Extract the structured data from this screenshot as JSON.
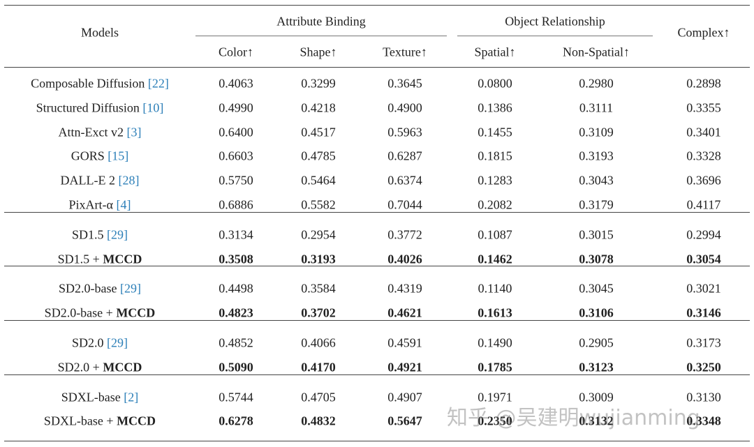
{
  "header": {
    "models": "Models",
    "complex": "Complex↑",
    "groups": [
      {
        "label": "Attribute Binding",
        "columns": [
          "Color↑",
          "Shape↑",
          "Texture↑"
        ]
      },
      {
        "label": "Object Relationship",
        "columns": [
          "Spatial↑",
          "Non-Spatial↑"
        ]
      }
    ]
  },
  "sections": [
    {
      "rows": [
        {
          "model": "Composable Diffusion",
          "ref": "[22]",
          "values": [
            "0.4063",
            "0.3299",
            "0.3645",
            "0.0800",
            "0.2980",
            "0.2898"
          ]
        },
        {
          "model": "Structured Diffusion",
          "ref": "[10]",
          "values": [
            "0.4990",
            "0.4218",
            "0.4900",
            "0.1386",
            "0.3111",
            "0.3355"
          ]
        },
        {
          "model": "Attn-Exct v2",
          "ref": "[3]",
          "values": [
            "0.6400",
            "0.4517",
            "0.5963",
            "0.1455",
            "0.3109",
            "0.3401"
          ]
        },
        {
          "model": "GORS",
          "ref": "[15]",
          "values": [
            "0.6603",
            "0.4785",
            "0.6287",
            "0.1815",
            "0.3193",
            "0.3328"
          ]
        },
        {
          "model": "DALL-E 2",
          "ref": "[28]",
          "values": [
            "0.5750",
            "0.5464",
            "0.6374",
            "0.1283",
            "0.3043",
            "0.3696"
          ]
        },
        {
          "model": "PixArt-α",
          "ref": "[4]",
          "values": [
            "0.6886",
            "0.5582",
            "0.7044",
            "0.2082",
            "0.3179",
            "0.4117"
          ]
        }
      ]
    },
    {
      "rows": [
        {
          "model": "SD1.5",
          "ref": "[29]",
          "values": [
            "0.3134",
            "0.2954",
            "0.3772",
            "0.1087",
            "0.3015",
            "0.2994"
          ]
        },
        {
          "model": "SD1.5 +",
          "method": "MCCD",
          "bold": true,
          "values": [
            "0.3508",
            "0.3193",
            "0.4026",
            "0.1462",
            "0.3078",
            "0.3054"
          ]
        }
      ]
    },
    {
      "rows": [
        {
          "model": "SD2.0-base",
          "ref": "[29]",
          "values": [
            "0.4498",
            "0.3584",
            "0.4319",
            "0.1140",
            "0.3045",
            "0.3021"
          ]
        },
        {
          "model": "SD2.0-base +",
          "method": "MCCD",
          "bold": true,
          "values": [
            "0.4823",
            "0.3702",
            "0.4621",
            "0.1613",
            "0.3106",
            "0.3146"
          ]
        }
      ]
    },
    {
      "rows": [
        {
          "model": "SD2.0",
          "ref": "[29]",
          "values": [
            "0.4852",
            "0.4066",
            "0.4591",
            "0.1490",
            "0.2905",
            "0.3173"
          ]
        },
        {
          "model": "SD2.0 +",
          "method": "MCCD",
          "bold": true,
          "values": [
            "0.5090",
            "0.4170",
            "0.4921",
            "0.1785",
            "0.3123",
            "0.3250"
          ]
        }
      ]
    },
    {
      "rows": [
        {
          "model": "SDXL-base",
          "ref": "[2]",
          "values": [
            "0.5744",
            "0.4705",
            "0.4907",
            "0.1971",
            "0.3009",
            "0.3130"
          ]
        },
        {
          "model": "SDXL-base +",
          "method": "MCCD",
          "bold": true,
          "values": [
            "0.6278",
            "0.4832",
            "0.5647",
            "0.2350",
            "0.3132",
            "0.3348"
          ]
        }
      ]
    }
  ],
  "watermark": "知乎 @吴建明wujianming"
}
